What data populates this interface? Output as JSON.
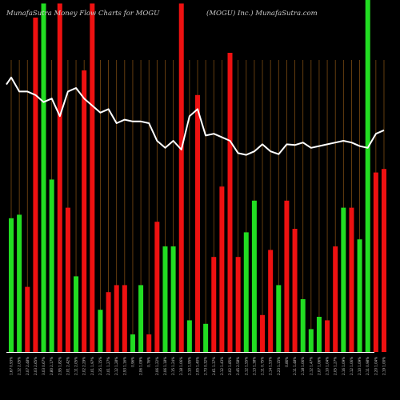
{
  "header": {
    "title_left": "MunafaSutra  Money Flow  Charts for MOGU",
    "title_right": "(MOGU) Inc.) MunafaSutra.com"
  },
  "colors": {
    "background": "#000000",
    "grid": "#7a4a12",
    "up": "#22dd22",
    "down": "#ee1111",
    "line": "#ffffff",
    "axis": "#ffffff"
  },
  "chart_data": {
    "type": "bar",
    "title": "MunafaSutra  Money Flow  Charts for MOGU",
    "subtitle": "(MOGU) Inc.) MunafaSutra.com",
    "categories": [
      "1.67 0.93%",
      "2.12 2.05%",
      "2.07 2.48%",
      "2.03 2.65%",
      "3.03 0.67%",
      "2.80 2.17%",
      "2.95 1.82%",
      "2.01 2.42%",
      "2.11 2.05%",
      "2.02 2.29%",
      "2.01 1.97%",
      "2.35 1.15%",
      "2.01 1.27%",
      "2.12 1.28%",
      "2.93 1.16%",
      "0.96%",
      "2.06 1.09%",
      "0.76%",
      "2.06 1.22%",
      "2.06 1.18%",
      "2.15 1.24%",
      "2.18 1.06%",
      "2.10 1.95%",
      "2.05 1.40%",
      "2.73 0.32%",
      "2.61 1.37%",
      "2.12 1.43%",
      "2.02 1.85%",
      "2.45 2.58%",
      "2.12 1.55%",
      "2.13 1.38%",
      "2.11 0.75%",
      "2.14 1.53%",
      "2.23 1.15%",
      "0.86%",
      "2.11 1.48%",
      "2.18 1.06%",
      "2.12 1.47%",
      "2.07 1.06%",
      "2.10 1.04%",
      "2.05 1.27%",
      "2.16 1.09%",
      "2.12 1.06%",
      "2.10 1.09%",
      "2.11 0.98%",
      "2.20 1.04%",
      "2.19 1.00%"
    ],
    "bar_colors": [
      "green",
      "green",
      "red",
      "red",
      "green",
      "green",
      "red",
      "red",
      "green",
      "red",
      "red",
      "green",
      "red",
      "red",
      "red",
      "green",
      "green",
      "red",
      "red",
      "green",
      "green",
      "red",
      "green",
      "red",
      "green",
      "red",
      "red",
      "red",
      "red",
      "green",
      "green",
      "red",
      "red",
      "green",
      "red",
      "red",
      "green",
      "green",
      "green",
      "red",
      "red",
      "green",
      "red",
      "green",
      "green",
      "red",
      "red"
    ],
    "values": [
      0.38,
      0.39,
      0.185,
      0.95,
      0.99,
      0.49,
      0.99,
      0.41,
      0.215,
      0.8,
      0.99,
      0.12,
      0.17,
      0.19,
      0.19,
      0.05,
      0.19,
      0.05,
      0.37,
      0.3,
      0.3,
      0.99,
      0.09,
      0.73,
      0.08,
      0.27,
      0.47,
      0.85,
      0.27,
      0.34,
      0.43,
      0.105,
      0.29,
      0.19,
      0.43,
      0.35,
      0.15,
      0.065,
      0.1,
      0.09,
      0.3,
      0.41,
      0.41,
      0.32,
      1.0,
      0.51,
      0.52
    ],
    "line": [
      0.78,
      0.74,
      0.74,
      0.73,
      0.71,
      0.72,
      0.67,
      0.74,
      0.75,
      0.72,
      0.7,
      0.68,
      0.69,
      0.65,
      0.66,
      0.655,
      0.655,
      0.65,
      0.6,
      0.58,
      0.6,
      0.575,
      0.67,
      0.69,
      0.615,
      0.62,
      0.61,
      0.6,
      0.565,
      0.56,
      0.57,
      0.59,
      0.57,
      0.562,
      0.59,
      0.588,
      0.595,
      0.58,
      0.585,
      0.59,
      0.595,
      0.6,
      0.595,
      0.585,
      0.58,
      0.62,
      0.63
    ],
    "line_start": 0.8
  }
}
